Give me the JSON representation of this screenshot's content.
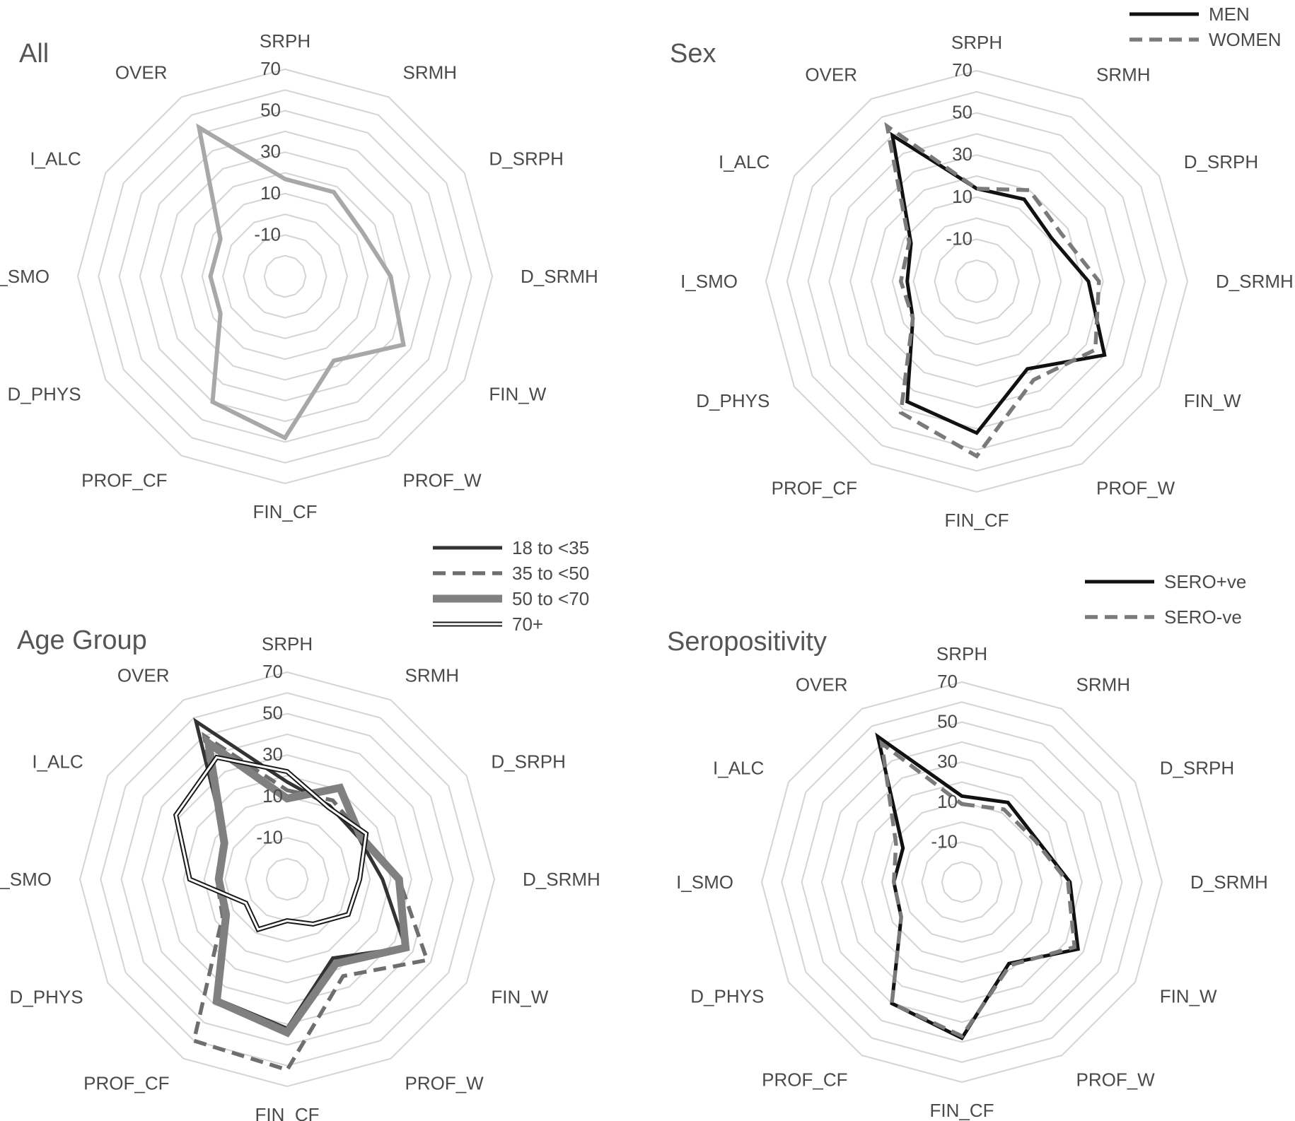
{
  "chart_data": [
    {
      "type": "radar",
      "title": "All",
      "axes": [
        "SRPH",
        "SRMH",
        "D_SRPH",
        "D_SRMH",
        "FIN_W",
        "PROF_W",
        "FIN_CF",
        "PROF_CF",
        "D_PHYS",
        "I_SMO",
        "I_ALC",
        "OVER"
      ],
      "ticks": [
        "70",
        "50",
        "30",
        "10",
        "-10"
      ],
      "rlim": [
        -30,
        70
      ],
      "grid": true,
      "series": [
        {
          "style": "solid-light",
          "color": "#a8a8a8",
          "values": [
            17,
            17,
            13,
            21,
            36,
            17,
            48,
            40,
            6,
            6,
            6,
            53
          ]
        }
      ]
    },
    {
      "type": "radar",
      "title": "Sex",
      "axes": [
        "SRPH",
        "SRMH",
        "D_SRPH",
        "D_SRMH",
        "FIN_W",
        "PROF_W",
        "FIN_CF",
        "PROF_CF",
        "D_PHYS",
        "I_SMO",
        "I_ALC",
        "OVER"
      ],
      "ticks": [
        "70",
        "50",
        "30",
        "10",
        "-10"
      ],
      "rlim": [
        -30,
        70
      ],
      "grid": true,
      "legend": "top-right",
      "series": [
        {
          "name": "MEN",
          "style": "solid",
          "color": "#111111",
          "values": [
            14,
            15,
            11,
            23,
            40,
            18,
            42,
            36,
            5,
            3,
            6,
            50
          ]
        },
        {
          "name": "WOMEN",
          "style": "dashed",
          "color": "#7a7a7a",
          "values": [
            14,
            20,
            16,
            28,
            35,
            24,
            53,
            42,
            5,
            6,
            7,
            55
          ]
        }
      ]
    },
    {
      "type": "radar",
      "title": "Age Group",
      "axes": [
        "SRPH",
        "SRMH",
        "D_SRPH",
        "D_SRMH",
        "FIN_W",
        "PROF_W",
        "FIN_CF",
        "PROF_CF",
        "D_PHYS",
        "I_SMO",
        "I_ALC",
        "OVER"
      ],
      "ticks": [
        "70",
        "50",
        "30",
        "10",
        "-10"
      ],
      "rlim": [
        -30,
        70
      ],
      "grid": true,
      "legend": "top-right",
      "series": [
        {
          "name": "18 to <35",
          "style": "solid",
          "color": "#333333",
          "values": [
            17,
            11,
            10,
            16,
            36,
            14,
            42,
            37,
            4,
            2,
            4,
            58
          ]
        },
        {
          "name": "35 to <50",
          "style": "dashed",
          "color": "#6e6e6e",
          "values": [
            13,
            14,
            12,
            24,
            48,
            24,
            62,
            60,
            6,
            4,
            6,
            50
          ]
        },
        {
          "name": "50 to <70",
          "style": "thick",
          "color": "#808080",
          "values": [
            9,
            21,
            11,
            24,
            36,
            17,
            44,
            38,
            4,
            3,
            5,
            46
          ]
        },
        {
          "name": "70+",
          "style": "double",
          "color": "#1a1a1a",
          "values": [
            22,
            10,
            14,
            5,
            4,
            -5,
            -10,
            -2,
            -7,
            17,
            32,
            38
          ]
        }
      ]
    },
    {
      "type": "radar",
      "title": "Seropositivity",
      "axes": [
        "SRPH",
        "SRMH",
        "D_SRPH",
        "D_SRMH",
        "FIN_W",
        "PROF_W",
        "FIN_CF",
        "PROF_CF",
        "D_PHYS",
        "I_SMO",
        "I_ALC",
        "OVER"
      ],
      "ticks": [
        "70",
        "50",
        "30",
        "10",
        "-10"
      ],
      "rlim": [
        -30,
        70
      ],
      "grid": true,
      "legend": "top-right",
      "series": [
        {
          "name": "SERO+ve",
          "style": "solid",
          "color": "#111111",
          "values": [
            13,
            16,
            13,
            24,
            37,
            17,
            48,
            40,
            5,
            4,
            4,
            54
          ]
        },
        {
          "name": "SERO-ve",
          "style": "dashed",
          "color": "#7a7a7a",
          "values": [
            9,
            12,
            12,
            23,
            35,
            18,
            47,
            40,
            5,
            4,
            8,
            50
          ]
        }
      ]
    }
  ]
}
